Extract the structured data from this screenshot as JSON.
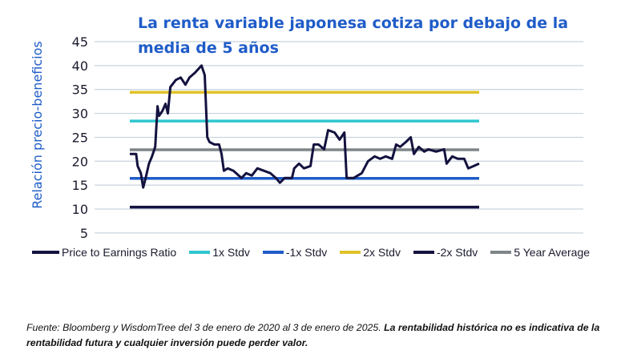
{
  "chart_data": {
    "type": "line",
    "title": "La renta variable japonesa cotiza por debajo de la media de 5 años",
    "ylabel": "Relación precio-beneficios",
    "xlabel": "",
    "ylim": [
      5,
      45
    ],
    "yticks": [
      5,
      10,
      15,
      20,
      25,
      30,
      35,
      40,
      45
    ],
    "grid": "horizontal",
    "legend_position": "bottom",
    "series": [
      {
        "name": "Price to Earnings Ratio",
        "color": "#14123f",
        "type": "line",
        "x": [
          "2020-01-03",
          "2020-02-05",
          "2020-02-13",
          "2020-03-01",
          "2020-03-13",
          "2020-03-26",
          "2020-04-12",
          "2020-04-28",
          "2020-05-15",
          "2020-05-27",
          "2020-06-04",
          "2020-06-21",
          "2020-07-08",
          "2020-07-20",
          "2020-08-02",
          "2020-08-31",
          "2020-09-25",
          "2020-10-20",
          "2020-11-10",
          "2020-12-09",
          "2021-01-12",
          "2021-01-29",
          "2021-02-11",
          "2021-02-23",
          "2021-03-20",
          "2021-04-14",
          "2021-04-27",
          "2021-05-09",
          "2021-05-30",
          "2021-06-28",
          "2021-08-09",
          "2021-09-03",
          "2021-10-02",
          "2021-10-31",
          "2021-12-04",
          "2022-01-07",
          "2022-02-05",
          "2022-02-26",
          "2022-03-23",
          "2022-04-30",
          "2022-05-12",
          "2022-06-06",
          "2022-07-02",
          "2022-08-05",
          "2022-08-22",
          "2022-09-16",
          "2022-10-15",
          "2022-11-05",
          "2022-12-09",
          "2023-01-04",
          "2023-01-29",
          "2023-02-10",
          "2023-03-19",
          "2023-04-30",
          "2023-06-02",
          "2023-07-06",
          "2023-08-04",
          "2023-09-03",
          "2023-10-06",
          "2023-10-27",
          "2023-11-17",
          "2023-12-16",
          "2024-01-11",
          "2024-01-28",
          "2024-02-22",
          "2024-03-22",
          "2024-04-12",
          "2024-05-23",
          "2024-07-04",
          "2024-07-17",
          "2024-08-15",
          "2024-09-13",
          "2024-10-17",
          "2024-11-07",
          "2024-12-06",
          "2025-01-03"
        ],
        "values": [
          21.5,
          21.5,
          19,
          17.5,
          14.5,
          16.5,
          19.5,
          21,
          23,
          31.5,
          29.5,
          30.5,
          32,
          30,
          35.5,
          37,
          37.5,
          36,
          37.5,
          38.5,
          40,
          38,
          25,
          24,
          23.5,
          23.5,
          21.5,
          18,
          18.5,
          18,
          16.5,
          17.5,
          17,
          18.5,
          18,
          17.5,
          16.5,
          15.5,
          16.5,
          16.5,
          18.5,
          19.5,
          18.5,
          19,
          23.5,
          23.5,
          22.5,
          26.5,
          26,
          24.5,
          26,
          16.5,
          16.5,
          17.5,
          20,
          21,
          20.5,
          21,
          20.5,
          23.5,
          23,
          24,
          25,
          21.5,
          23,
          22,
          22.5,
          22,
          22.5,
          19.5,
          21,
          20.5,
          20.5,
          18.5,
          19,
          19.5
        ]
      },
      {
        "name": "1x Stdv",
        "color": "#2fc6d0",
        "type": "constant",
        "value": 28.4
      },
      {
        "name": "-1x Stdv",
        "color": "#1f5cc8",
        "type": "constant",
        "value": 16.4
      },
      {
        "name": "2x Stdv",
        "color": "#e0c22a",
        "type": "constant",
        "value": 34.4
      },
      {
        "name": "-2x Stdv",
        "color": "#14123f",
        "type": "constant",
        "value": 10.4
      },
      {
        "name": "5 Year Average",
        "color": "#7f8587",
        "type": "constant",
        "value": 22.4
      }
    ]
  },
  "footer": {
    "source": "Fuente: Bloomberg y WisdomTree del 3 de enero de 2020 al 3 de enero de 2025. ",
    "disclaimer": "La rentabilidad histórica no es indicativa de la rentabilidad futura y cualquier inversión puede perder valor."
  }
}
